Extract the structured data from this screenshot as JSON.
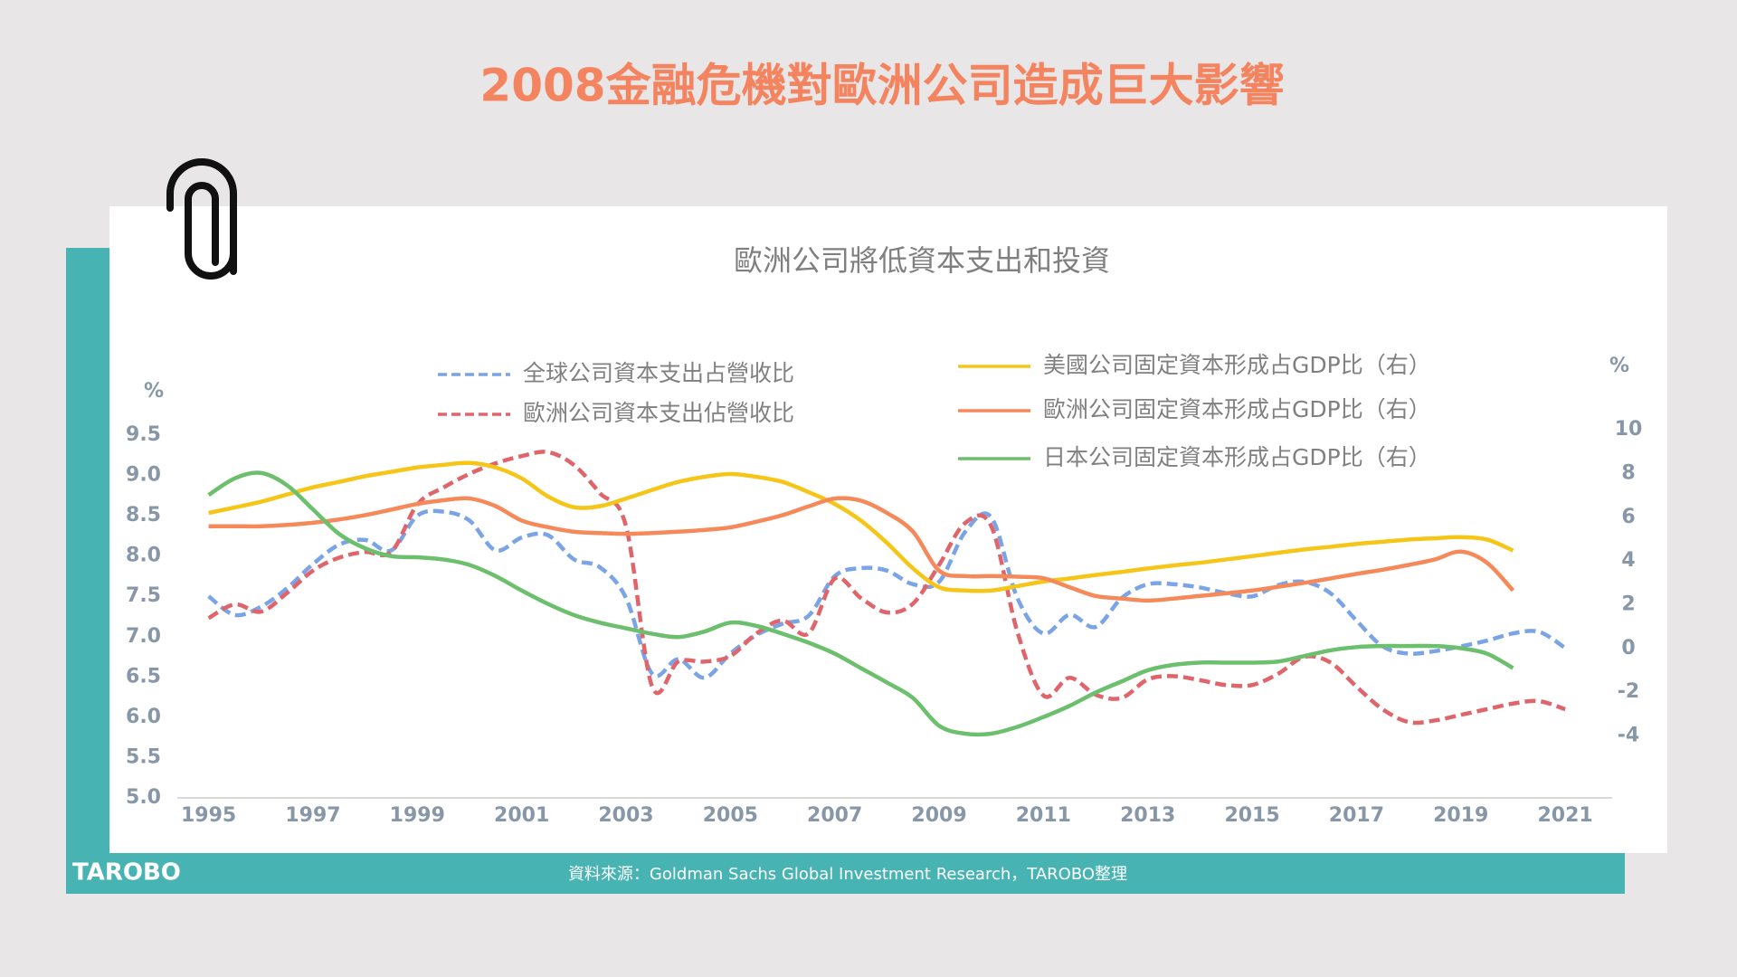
{
  "page_title": "2008金融危機對歐洲公司造成巨大影響",
  "chart_data": {
    "type": "line",
    "title": "歐洲公司將低資本支出和投資",
    "ylabel": "%",
    "y2label": "%",
    "x": [
      1995,
      1995.5,
      1996,
      1996.5,
      1997,
      1997.5,
      1998,
      1998.5,
      1999,
      1999.5,
      2000,
      2000.5,
      2001,
      2001.5,
      2002,
      2002.5,
      2003,
      2003.5,
      2004,
      2004.5,
      2005,
      2005.5,
      2006,
      2006.5,
      2007,
      2007.5,
      2008,
      2008.5,
      2009,
      2009.5,
      2010,
      2010.5,
      2011,
      2011.5,
      2012,
      2012.5,
      2013,
      2013.5,
      2014,
      2014.5,
      2015,
      2015.5,
      2016,
      2016.5,
      2017,
      2017.5,
      2018,
      2018.5,
      2019,
      2019.5,
      2020,
      2020.5,
      2021
    ],
    "xlim": [
      1994.4,
      2021.9
    ],
    "xticks": [
      1995,
      1997,
      1999,
      2001,
      2003,
      2005,
      2007,
      2009,
      2011,
      2013,
      2015,
      2017,
      2019,
      2021
    ],
    "ylim": [
      5,
      9.5
    ],
    "yticks": [
      {
        "value": 5,
        "label": "5.0"
      },
      5.5,
      {
        "value": 6,
        "label": "6.0"
      },
      6.5,
      {
        "value": 7,
        "label": "7.0"
      },
      7.5,
      {
        "value": 8,
        "label": "8.0"
      },
      8.5,
      {
        "value": 9,
        "label": "9.0"
      },
      9.5
    ],
    "y2lim": [
      -6.84,
      9.76
    ],
    "y2ticks": [
      -4,
      -2,
      0,
      2,
      4,
      6,
      8,
      10
    ],
    "series": [
      {
        "name": "全球公司資本支出占營收比",
        "color": "#7ba4e6",
        "dashed": true,
        "values": [
          7.5,
          7.27,
          7.37,
          7.6,
          7.9,
          8.14,
          8.2,
          8.07,
          8.5,
          8.55,
          8.44,
          8.07,
          8.23,
          8.26,
          7.96,
          7.86,
          7.48,
          6.54,
          6.72,
          6.49,
          6.79,
          7.02,
          7.16,
          7.26,
          7.75,
          7.85,
          7.82,
          7.65,
          7.68,
          8.3,
          8.48,
          7.48,
          7.04,
          7.27,
          7.12,
          7.48,
          7.65,
          7.65,
          7.61,
          7.54,
          7.5,
          7.64,
          7.68,
          7.54,
          7.2,
          6.88,
          6.79,
          6.82,
          6.88,
          6.95,
          7.04,
          7.06,
          6.86
        ]
      },
      {
        "name": "歐洲公司資本支出佔營收比",
        "color": "#e0656b",
        "dashed": true,
        "values": [
          7.23,
          7.4,
          7.31,
          7.54,
          7.82,
          7.98,
          8.05,
          8.05,
          8.64,
          8.85,
          9.02,
          9.15,
          9.24,
          9.29,
          9.13,
          8.78,
          8.37,
          6.38,
          6.69,
          6.69,
          6.76,
          7.04,
          7.2,
          7.04,
          7.72,
          7.48,
          7.3,
          7.41,
          7.89,
          8.41,
          8.37,
          7.06,
          6.27,
          6.49,
          6.28,
          6.24,
          6.47,
          6.51,
          6.46,
          6.4,
          6.4,
          6.54,
          6.75,
          6.68,
          6.38,
          6.1,
          5.94,
          5.96,
          6.03,
          6.1,
          6.17,
          6.2,
          6.1
        ]
      },
      {
        "name": "美國公司固定資本形成占GDP比（右）",
        "color": "#f5c518",
        "axis": "y2",
        "values": [
          6.2,
          6.45,
          6.71,
          7.04,
          7.37,
          7.62,
          7.88,
          8.08,
          8.28,
          8.4,
          8.49,
          8.28,
          7.78,
          6.96,
          6.46,
          6.51,
          6.86,
          7.25,
          7.62,
          7.85,
          7.98,
          7.85,
          7.62,
          7.15,
          6.61,
          5.85,
          4.83,
          3.66,
          2.8,
          2.65,
          2.65,
          2.85,
          3.06,
          3.2,
          3.36,
          3.5,
          3.66,
          3.8,
          3.92,
          4.07,
          4.22,
          4.38,
          4.53,
          4.65,
          4.78,
          4.88,
          4.98,
          5.04,
          5.09,
          4.98,
          4.48,
          null,
          null
        ]
      },
      {
        "name": "歐洲公司固定資本形成占GDP比（右）",
        "color": "#f6895a",
        "axis": "y2",
        "values": [
          5.59,
          5.59,
          5.59,
          5.65,
          5.75,
          5.9,
          6.1,
          6.35,
          6.61,
          6.78,
          6.86,
          6.51,
          5.85,
          5.55,
          5.34,
          5.28,
          5.24,
          5.28,
          5.34,
          5.42,
          5.54,
          5.8,
          6.1,
          6.5,
          6.86,
          6.76,
          6.2,
          5.34,
          3.56,
          3.31,
          3.31,
          3.28,
          3.21,
          2.8,
          2.4,
          2.28,
          2.19,
          2.28,
          2.4,
          2.52,
          2.65,
          2.82,
          3.0,
          3.2,
          3.41,
          3.6,
          3.82,
          4.07,
          4.43,
          3.92,
          2.65,
          null,
          null
        ]
      },
      {
        "name": "日本公司固定資本形成占GDP比（右）",
        "color": "#6cbf6c",
        "axis": "y2",
        "values": [
          7.02,
          7.78,
          8.03,
          7.47,
          6.36,
          5.24,
          4.58,
          4.22,
          4.17,
          4.07,
          3.82,
          3.31,
          2.65,
          2.04,
          1.53,
          1.18,
          0.92,
          0.67,
          0.52,
          0.77,
          1.18,
          1.03,
          0.67,
          0.26,
          -0.24,
          -0.9,
          -1.56,
          -2.27,
          -3.54,
          -3.9,
          -3.9,
          -3.59,
          -3.14,
          -2.63,
          -2.02,
          -1.51,
          -1.0,
          -0.75,
          -0.65,
          -0.65,
          -0.65,
          -0.6,
          -0.35,
          -0.09,
          0.06,
          0.11,
          0.11,
          0.11,
          0.01,
          -0.24,
          -0.9,
          null,
          null
        ]
      }
    ]
  },
  "footer": {
    "logo": "TAROBO",
    "source": "資料來源：Goldman Sachs Global Investment Research，TAROBO整理"
  }
}
